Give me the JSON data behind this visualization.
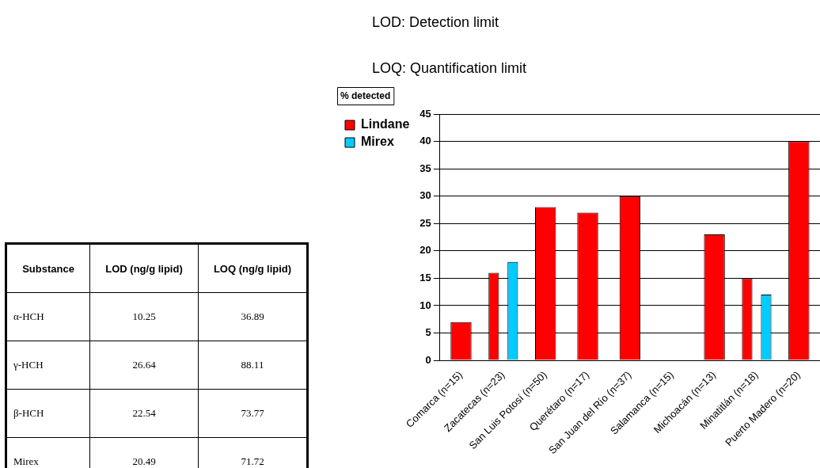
{
  "chart_data": [
    {
      "type": "bar",
      "ylabel": "% detected",
      "categories": [
        "Comarca (n=15)",
        "Zacatecas (n=23)",
        "San Luis Potosí (n=50)",
        "Querétaro (n=17)",
        "San Juan del Río (n=37)",
        "Salamanca (n=15)",
        "Michoacán (n=13)",
        "Minatitlán (n=18)",
        "Puerto Madero (n=20)"
      ],
      "series": [
        {
          "name": "Lindane",
          "color": "#ff0000",
          "values": [
            7,
            16,
            28,
            27,
            30,
            null,
            23,
            15,
            40
          ]
        },
        {
          "name": "Mirex",
          "color": "#00ccff",
          "values": [
            null,
            18,
            null,
            null,
            null,
            null,
            null,
            12,
            null
          ]
        }
      ],
      "ylim": [
        0,
        45
      ],
      "yticks": [
        0,
        5,
        10,
        15,
        20,
        25,
        30,
        35,
        40,
        45
      ],
      "grid": "y",
      "legend": "left"
    },
    {
      "type": "other",
      "annotations": [
        "LOD: Detection limit",
        "LOQ: Quantification limit"
      ],
      "ylabel": "Substance",
      "categories": [
        "LOD (ng/g lipid)",
        "LOQ (ng/g lipid)"
      ],
      "y_categories": [
        "α-HCH",
        "γ-HCH",
        "β-HCH",
        "Mirex"
      ],
      "cell_labels": [
        [
          "10.25",
          "36.89"
        ],
        [
          "26.64",
          "88.11"
        ],
        [
          "22.54",
          "73.77"
        ],
        [
          "20.49",
          "71.72"
        ]
      ]
    }
  ]
}
